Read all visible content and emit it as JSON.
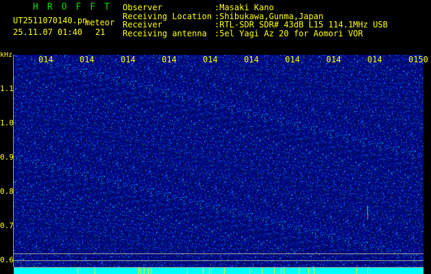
{
  "app_title": "HROFFT",
  "file_name": "UT2511070140.pn",
  "mode": "meteor",
  "datetime": "25.11.07 01:40",
  "count": "21",
  "info": [
    {
      "label": "Observer",
      "value": ":Masaki Kano"
    },
    {
      "label": "Receiving Location",
      "value": ":Shibukawa,Gunma,Japan"
    },
    {
      "label": "Receiver",
      "value": ":RTL-SDR SDR# 43dB L15 114.1MHz USB"
    },
    {
      "label": "Receiving antenna",
      "value": ":5el Yagi Az 20 for Aomori VOR"
    }
  ],
  "y_unit": "kHz",
  "y_labels": [
    "1.1",
    "1.0",
    "0.9",
    "0.8",
    "0.7",
    "0.6"
  ],
  "time_labels": [
    "0141",
    "0142",
    "0143",
    "0144",
    "0145",
    "0146",
    "0147",
    "0148",
    "0149",
    "0150"
  ],
  "colors": {
    "text": "#ffff00",
    "title": "#00e000",
    "background_noise": "#0000a0",
    "baseline": "#00ffff"
  }
}
